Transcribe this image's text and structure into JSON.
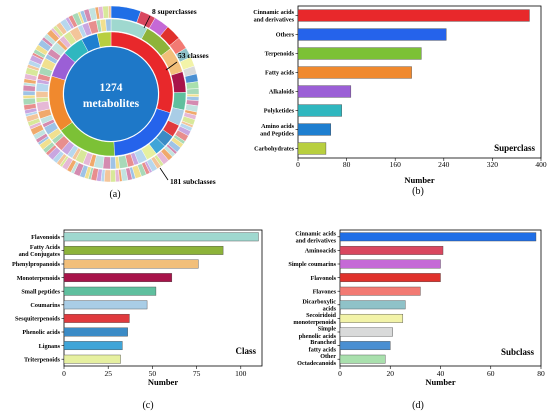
{
  "panels": [
    {
      "id": "a",
      "label": "(a)"
    },
    {
      "id": "b",
      "label": "(b)"
    },
    {
      "id": "c",
      "label": "(c)"
    },
    {
      "id": "d",
      "label": "(d)"
    }
  ],
  "chart_data": [
    {
      "panel": "a",
      "type": "pie",
      "center_label": [
        "1274",
        "metabolites"
      ],
      "annotations": [
        "8 superclasses",
        "53 classes",
        "181 subclasses"
      ],
      "rings": [
        {
          "name": "superclass",
          "values": [
            381,
            244,
            203,
            187,
            87,
            72,
            54,
            46
          ],
          "colors": [
            "#e8282b",
            "#2563eb",
            "#7cc136",
            "#f0892e",
            "#9b5fd6",
            "#2fb7bf",
            "#1e7fd0",
            "#b8cf3f"
          ]
        },
        {
          "name": "class",
          "values": [
            110,
            90,
            76,
            61,
            52,
            47,
            37,
            36,
            33,
            32
          ],
          "colors": [
            "#9fd8cf",
            "#8db33a",
            "#f2bf7a",
            "#a8144a",
            "#5fbf9e",
            "#a9cde6",
            "#e03a3e",
            "#3b8bc6",
            "#3fa5d8",
            "#e6f0a0"
          ]
        },
        {
          "name": "subclass",
          "values": [
            78,
            41,
            40,
            40,
            32,
            26,
            25,
            21,
            20,
            18
          ],
          "colors": [
            "#1f6ee6",
            "#d9475f",
            "#c569d6",
            "#e0312c",
            "#f27a73",
            "#8fc2c8",
            "#f2f3a8",
            "#d9dada",
            "#4a8fd2",
            "#a9e0ad"
          ]
        }
      ]
    },
    {
      "panel": "b",
      "type": "bar",
      "orientation": "horizontal",
      "categories": [
        "Cinnamic acids and derivatives",
        "Others",
        "Terpenoids",
        "Fatty acids",
        "Alkaloids",
        "Polyketides",
        "Amino acids and Peptides",
        "Carbohydrates"
      ],
      "values": [
        381,
        244,
        203,
        187,
        87,
        72,
        54,
        46
      ],
      "colors": [
        "#e8282b",
        "#2563eb",
        "#7cc136",
        "#f0892e",
        "#9b5fd6",
        "#2fb7bf",
        "#1e7fd0",
        "#b8cf3f"
      ],
      "xlabel": "Number",
      "ticks": [
        "0",
        "80",
        "160",
        "240",
        "320",
        "400"
      ],
      "xlim": [
        0,
        400
      ],
      "legend": "Superclass"
    },
    {
      "panel": "c",
      "type": "bar",
      "orientation": "horizontal",
      "categories": [
        "Flavonoids",
        "Fatty Acids and Conjugates",
        "Phenylpropanoids",
        "Monoterpenoids",
        "Small peptides",
        "Coumarins",
        "Sesquiterpenoids",
        "Phenolic acids",
        "Lignans",
        "Triterpenoids"
      ],
      "values": [
        110,
        90,
        76,
        61,
        52,
        47,
        37,
        36,
        33,
        32
      ],
      "colors": [
        "#9fd8cf",
        "#8db33a",
        "#f2bf7a",
        "#a8144a",
        "#5fbf9e",
        "#a9cde6",
        "#e03a3e",
        "#3b8bc6",
        "#3fa5d8",
        "#e6f0a0"
      ],
      "xlabel": "Number",
      "ticks": [
        "0",
        "25",
        "50",
        "75",
        "100"
      ],
      "xlim": [
        0,
        112
      ],
      "legend": "Class"
    },
    {
      "panel": "d",
      "type": "bar",
      "orientation": "horizontal",
      "categories": [
        "Cinnamic acids and derivatives",
        "Aminoacids",
        "Simple coumarins",
        "Flavonols",
        "Flavones",
        "Dicarboxylic acids",
        "Secoiridoid monoterpenoids",
        "Simple phenolic acids",
        "Branched fatty acids",
        "Other Octadecanoids"
      ],
      "values": [
        78,
        41,
        40,
        40,
        32,
        26,
        25,
        21,
        20,
        18
      ],
      "colors": [
        "#1f6ee6",
        "#d9475f",
        "#c569d6",
        "#e0312c",
        "#f27a73",
        "#8fc2c8",
        "#f2f3a8",
        "#d9dada",
        "#4a8fd2",
        "#a9e0ad"
      ],
      "xlabel": "Number",
      "ticks": [
        "0",
        "20",
        "40",
        "60",
        "80"
      ],
      "xlim": [
        0,
        80
      ],
      "legend": "Subclass"
    }
  ]
}
